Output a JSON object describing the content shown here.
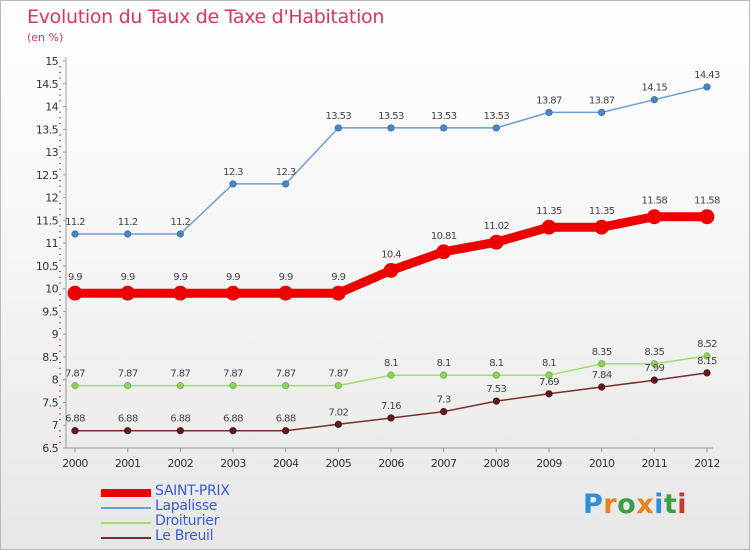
{
  "title": "Evolution du Taux de Taxe d'Habitation",
  "unit": "(en %)",
  "brand": {
    "letters": [
      {
        "ch": "P",
        "color": "#2f8fd6"
      },
      {
        "ch": "r",
        "color": "#e8831e"
      },
      {
        "ch": "o",
        "color": "#3b9e46"
      },
      {
        "ch": "x",
        "color": "#e8831e"
      },
      {
        "ch": "i",
        "color": "#2f8fd6"
      },
      {
        "ch": "t",
        "color": "#3b9e46"
      },
      {
        "ch": "i",
        "color": "#c8382e"
      }
    ]
  },
  "chart_data": {
    "type": "line",
    "x": [
      "2000",
      "2001",
      "2002",
      "2003",
      "2004",
      "2005",
      "2006",
      "2007",
      "2008",
      "2009",
      "2010",
      "2011",
      "2012"
    ],
    "ylim": [
      6.5,
      15
    ],
    "yticks": [
      "6.5",
      "7",
      "7.5",
      "8",
      "8.5",
      "9",
      "9.5",
      "10",
      "10.5",
      "11",
      "11.5",
      "12",
      "12.5",
      "13",
      "13.5",
      "14",
      "14.5",
      "15"
    ],
    "grid": false,
    "legend_position": "bottom-left",
    "series": [
      {
        "name": "SAINT-PRIX",
        "color": "#ee0000",
        "values": [
          9.9,
          9.9,
          9.9,
          9.9,
          9.9,
          9.9,
          10.4,
          10.81,
          11.02,
          11.35,
          11.35,
          11.58,
          11.58
        ],
        "labels": [
          "9.9",
          "9.9",
          "9.9",
          "9.9",
          "9.9",
          "9.9",
          "10.4",
          "10.81",
          "11.02",
          "11.35",
          "11.35",
          "11.58",
          "11.58"
        ]
      },
      {
        "name": "Lapalisse",
        "color": "#6a9fd2",
        "values": [
          11.2,
          11.2,
          11.2,
          12.3,
          12.3,
          13.53,
          13.53,
          13.53,
          13.53,
          13.87,
          13.87,
          14.15,
          14.43
        ],
        "labels": [
          "11.2",
          "11.2",
          "11.2",
          "12.3",
          "12.3",
          "13.53",
          "13.53",
          "13.53",
          "13.53",
          "13.87",
          "13.87",
          "14.15",
          "14.43"
        ]
      },
      {
        "name": "Droiturier",
        "color": "#9ee070",
        "values": [
          7.87,
          7.87,
          7.87,
          7.87,
          7.87,
          7.87,
          8.1,
          8.1,
          8.1,
          8.1,
          8.35,
          8.35,
          8.52
        ],
        "labels": [
          "7.87",
          "7.87",
          "7.87",
          "7.87",
          "7.87",
          "7.87",
          "8.1",
          "8.1",
          "8.1",
          "8.1",
          "8.35",
          "8.35",
          "8.52"
        ]
      },
      {
        "name": "Le Breuil",
        "color": "#7a2e2e",
        "values": [
          6.88,
          6.88,
          6.88,
          6.88,
          6.88,
          7.02,
          7.16,
          7.3,
          7.53,
          7.69,
          7.84,
          7.99,
          8.15
        ],
        "labels": [
          "6.88",
          "6.88",
          "6.88",
          "6.88",
          "6.88",
          "7.02",
          "7.16",
          "7.3",
          "7.53",
          "7.69",
          "7.84",
          "7.99",
          "8.15"
        ]
      }
    ]
  }
}
